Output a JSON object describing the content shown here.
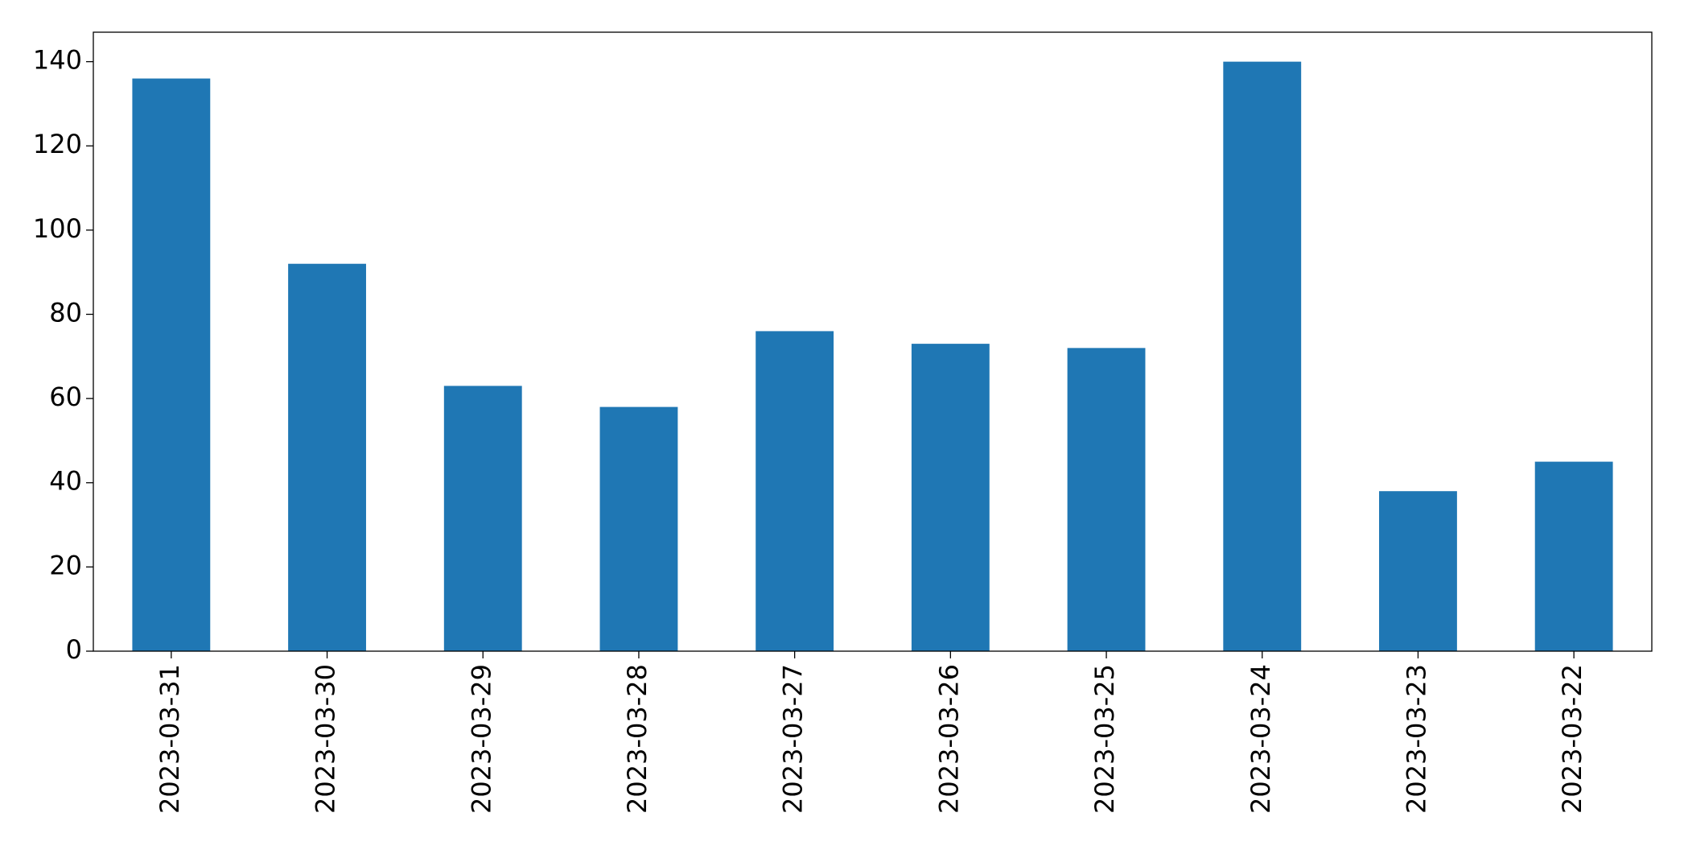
{
  "chart_data": {
    "type": "bar",
    "categories": [
      "2023-03-31",
      "2023-03-30",
      "2023-03-29",
      "2023-03-28",
      "2023-03-27",
      "2023-03-26",
      "2023-03-25",
      "2023-03-24",
      "2023-03-23",
      "2023-03-22"
    ],
    "values": [
      136,
      92,
      63,
      58,
      76,
      73,
      72,
      140,
      38,
      45
    ],
    "color": "#1f77b4",
    "ylim": [
      0,
      147
    ],
    "yticks": [
      0,
      20,
      40,
      60,
      80,
      100,
      120,
      140
    ],
    "grid": false
  }
}
